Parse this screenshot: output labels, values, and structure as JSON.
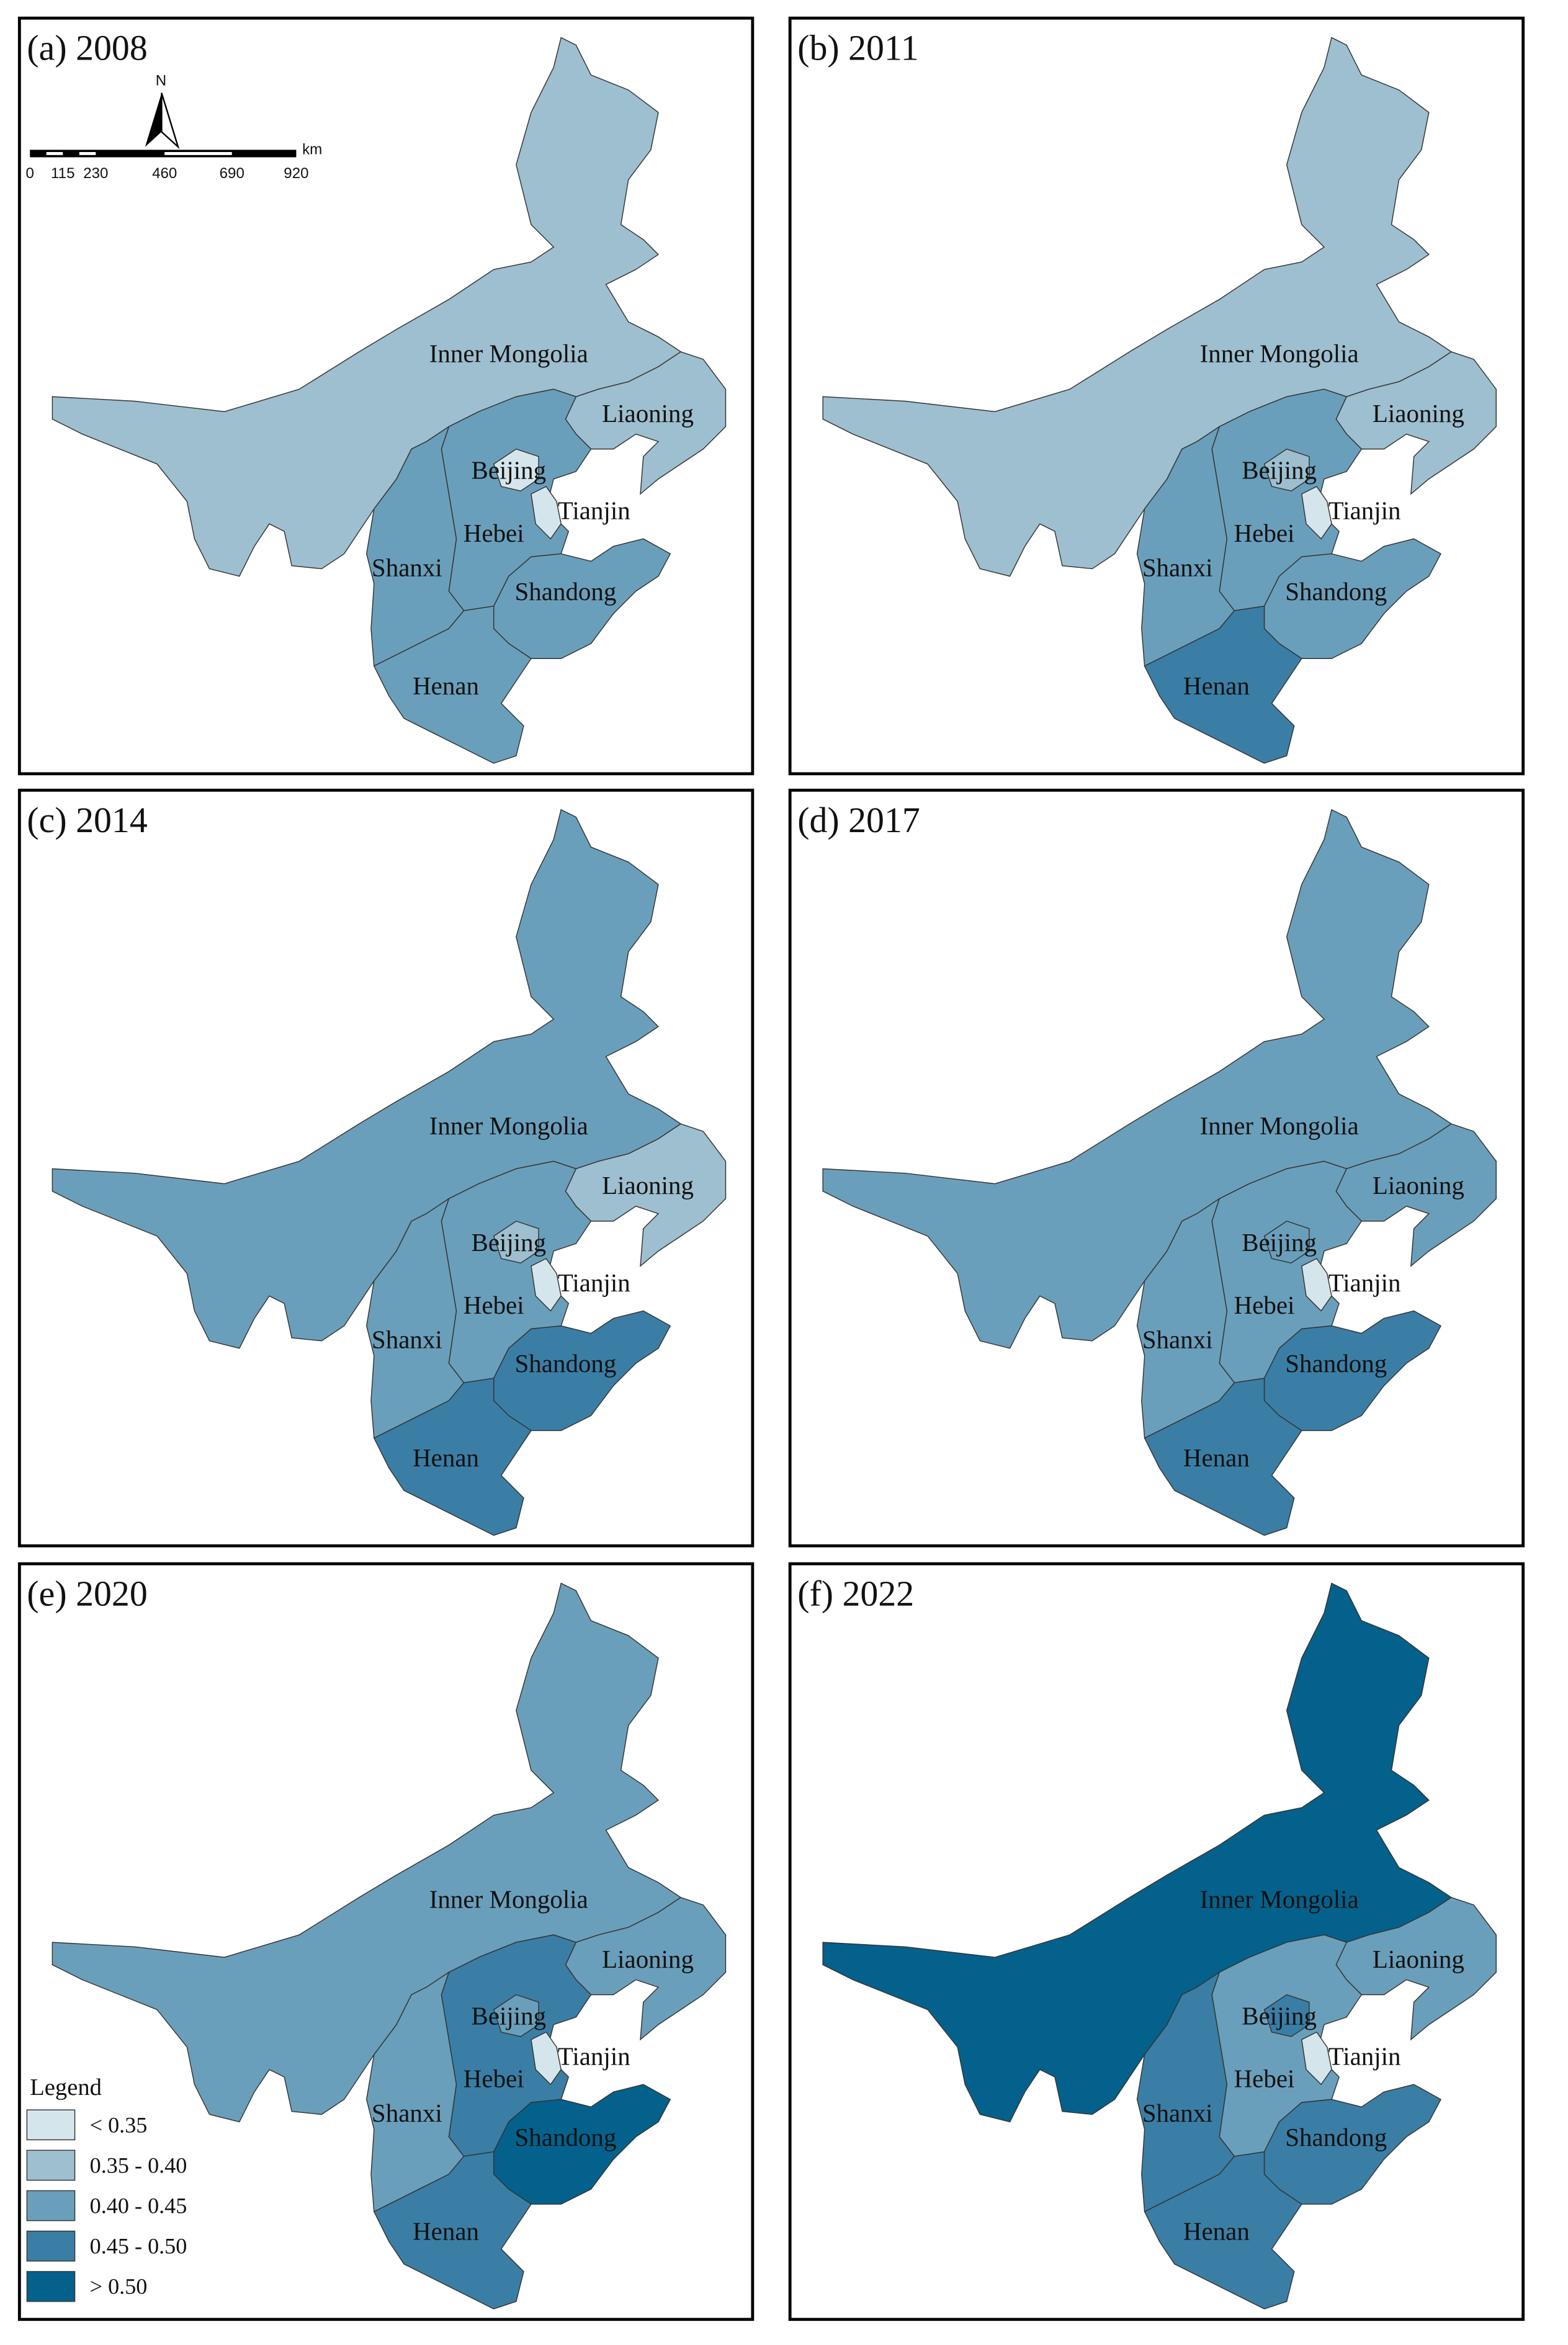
{
  "panels": [
    {
      "title": "(a) 2008",
      "regions": [
        {
          "name": "Inner Mongolia",
          "color": "#9dbfd0"
        },
        {
          "name": "Liaoning",
          "color": "#9dbfd0"
        },
        {
          "name": "Hebei",
          "color": "#6a9fbb"
        },
        {
          "name": "Beijing",
          "color": "#d4e6ec"
        },
        {
          "name": "Tianjin",
          "color": "#d4e6ec"
        },
        {
          "name": "Shanxi",
          "color": "#6a9fbb"
        },
        {
          "name": "Shandong",
          "color": "#6a9fbb"
        },
        {
          "name": "Henan",
          "color": "#6a9fbb"
        }
      ]
    },
    {
      "title": "(b) 2011",
      "regions": [
        {
          "name": "Inner Mongolia",
          "color": "#9dbfd0"
        },
        {
          "name": "Liaoning",
          "color": "#9dbfd0"
        },
        {
          "name": "Hebei",
          "color": "#6a9fbb"
        },
        {
          "name": "Beijing",
          "color": "#9dbfd0"
        },
        {
          "name": "Tianjin",
          "color": "#d4e6ec"
        },
        {
          "name": "Shanxi",
          "color": "#6a9fbb"
        },
        {
          "name": "Shandong",
          "color": "#6a9fbb"
        },
        {
          "name": "Henan",
          "color": "#3a7ea5"
        }
      ]
    },
    {
      "title": "(c) 2014",
      "regions": [
        {
          "name": "Inner Mongolia",
          "color": "#6a9fbb"
        },
        {
          "name": "Liaoning",
          "color": "#9dbfd0"
        },
        {
          "name": "Hebei",
          "color": "#6a9fbb"
        },
        {
          "name": "Beijing",
          "color": "#9dbfd0"
        },
        {
          "name": "Tianjin",
          "color": "#d4e6ec"
        },
        {
          "name": "Shanxi",
          "color": "#6a9fbb"
        },
        {
          "name": "Shandong",
          "color": "#3a7ea5"
        },
        {
          "name": "Henan",
          "color": "#3a7ea5"
        }
      ]
    },
    {
      "title": "(d) 2017",
      "regions": [
        {
          "name": "Inner Mongolia",
          "color": "#6a9fbb"
        },
        {
          "name": "Liaoning",
          "color": "#6a9fbb"
        },
        {
          "name": "Hebei",
          "color": "#6a9fbb"
        },
        {
          "name": "Beijing",
          "color": "#6a9fbb"
        },
        {
          "name": "Tianjin",
          "color": "#d4e6ec"
        },
        {
          "name": "Shanxi",
          "color": "#6a9fbb"
        },
        {
          "name": "Shandong",
          "color": "#3a7ea5"
        },
        {
          "name": "Henan",
          "color": "#3a7ea5"
        }
      ]
    },
    {
      "title": "(e) 2020",
      "regions": [
        {
          "name": "Inner Mongolia",
          "color": "#6a9fbb"
        },
        {
          "name": "Liaoning",
          "color": "#6a9fbb"
        },
        {
          "name": "Hebei",
          "color": "#3a7ea5"
        },
        {
          "name": "Beijing",
          "color": "#6a9fbb"
        },
        {
          "name": "Tianjin",
          "color": "#d4e6ec"
        },
        {
          "name": "Shanxi",
          "color": "#6a9fbb"
        },
        {
          "name": "Shandong",
          "color": "#04618c"
        },
        {
          "name": "Henan",
          "color": "#3a7ea5"
        }
      ]
    },
    {
      "title": "(f) 2022",
      "regions": [
        {
          "name": "Inner Mongolia",
          "color": "#04618c"
        },
        {
          "name": "Liaoning",
          "color": "#6a9fbb"
        },
        {
          "name": "Hebei",
          "color": "#6a9fbb"
        },
        {
          "name": "Beijing",
          "color": "#3a7ea5"
        },
        {
          "name": "Tianjin",
          "color": "#d4e6ec"
        },
        {
          "name": "Shanxi",
          "color": "#3a7ea5"
        },
        {
          "name": "Shandong",
          "color": "#3a7ea5"
        },
        {
          "name": "Henan",
          "color": "#3a7ea5"
        }
      ]
    }
  ],
  "legend": {
    "title": "Legend",
    "classes": [
      {
        "label": "< 0.35",
        "color": "#d4e6ec"
      },
      {
        "label": "0.35 - 0.40",
        "color": "#9dbfd0"
      },
      {
        "label": "0.40 - 0.45",
        "color": "#6a9fbb"
      },
      {
        "label": "0.45 - 0.50",
        "color": "#3a7ea5"
      },
      {
        "label": "> 0.50",
        "color": "#04618c"
      }
    ]
  },
  "north": "N",
  "scale_bar": {
    "ticks": [
      "0",
      "115",
      "230",
      "460",
      "690",
      "920"
    ],
    "unit": "km"
  }
}
